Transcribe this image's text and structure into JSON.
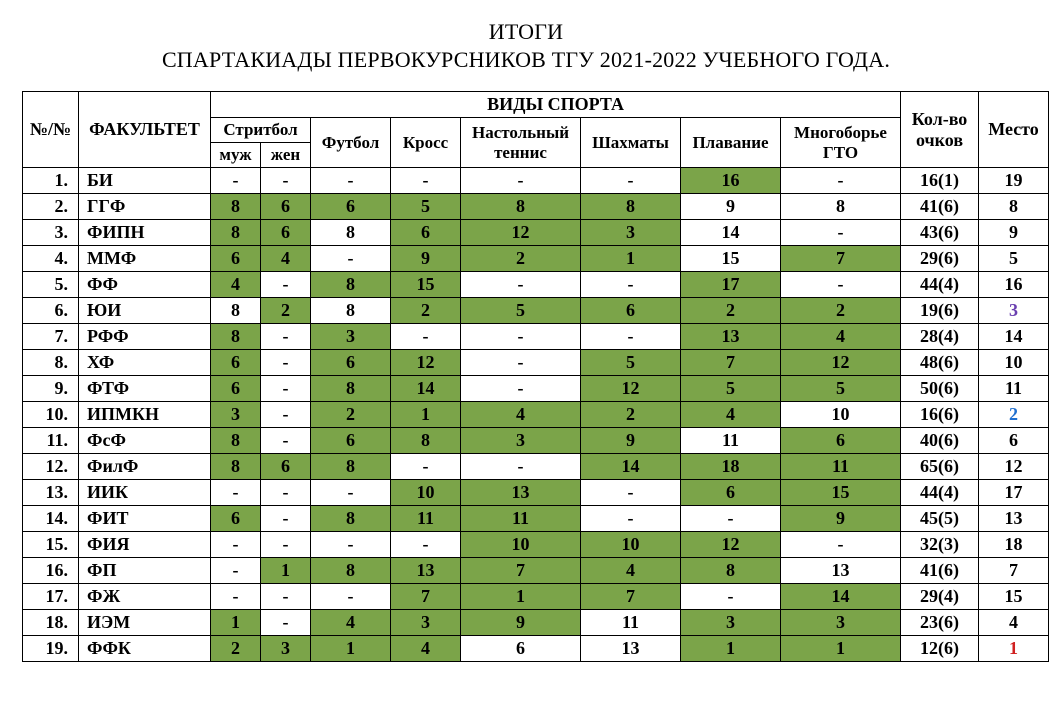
{
  "title_lines": [
    "ИТОГИ",
    "СПАРТАКИАДЫ ПЕРВОКУРСНИКОВ ТГУ 2021-2022 УЧЕБНОГО ГОДА."
  ],
  "headers": {
    "number": "№/№",
    "faculty": "ФАКУЛЬТЕТ",
    "sports_group": "ВИДЫ СПОРТА",
    "points": "Кол-во очков",
    "place": "Место",
    "streetball": "Стритбол",
    "streetball_m": "муж",
    "streetball_f": "жен",
    "football": "Футбол",
    "cross": "Кросс",
    "tennis": "Настольный теннис",
    "chess": "Шахматы",
    "swim": "Плавание",
    "gto": "Многоборье ГТО"
  },
  "colors": {
    "highlight": "#7ba449",
    "background": "#ffffff",
    "border": "#000000",
    "text": "#000000",
    "place_special": {
      "1": "#d02020",
      "2": "#1f6fd0",
      "3": "#6a3fb0"
    }
  },
  "columns": [
    "streetball_m",
    "streetball_f",
    "football",
    "cross",
    "tennis",
    "chess",
    "swim",
    "gto"
  ],
  "rows": [
    {
      "n": "1.",
      "fac": "БИ",
      "vals": [
        "-",
        "-",
        "-",
        "-",
        "-",
        "-",
        "16",
        "-"
      ],
      "hl": [
        0,
        0,
        0,
        0,
        0,
        0,
        1,
        0
      ],
      "pts": "16(1)",
      "place": "19"
    },
    {
      "n": "2.",
      "fac": "ГГФ",
      "vals": [
        "8",
        "6",
        "6",
        "5",
        "8",
        "8",
        "9",
        "8"
      ],
      "hl": [
        1,
        1,
        1,
        1,
        1,
        1,
        0,
        0
      ],
      "pts": "41(6)",
      "place": "8"
    },
    {
      "n": "3.",
      "fac": "ФИПН",
      "vals": [
        "8",
        "6",
        "8",
        "6",
        "12",
        "3",
        "14",
        "-"
      ],
      "hl": [
        1,
        1,
        0,
        1,
        1,
        1,
        0,
        0
      ],
      "pts": "43(6)",
      "place": "9"
    },
    {
      "n": "4.",
      "fac": "ММФ",
      "vals": [
        "6",
        "4",
        "-",
        "9",
        "2",
        "1",
        "15",
        "7"
      ],
      "hl": [
        1,
        1,
        0,
        1,
        1,
        1,
        0,
        1
      ],
      "pts": "29(6)",
      "place": "5"
    },
    {
      "n": "5.",
      "fac": "ФФ",
      "vals": [
        "4",
        "-",
        "8",
        "15",
        "-",
        "-",
        "17",
        "-"
      ],
      "hl": [
        1,
        0,
        1,
        1,
        0,
        0,
        1,
        0
      ],
      "pts": "44(4)",
      "place": "16"
    },
    {
      "n": "6.",
      "fac": "ЮИ",
      "vals": [
        "8",
        "2",
        "8",
        "2",
        "5",
        "6",
        "2",
        "2"
      ],
      "hl": [
        0,
        1,
        0,
        1,
        1,
        1,
        1,
        1
      ],
      "pts": "19(6)",
      "place": "3",
      "place_color": "#6a3fb0"
    },
    {
      "n": "7.",
      "fac": "РФФ",
      "vals": [
        "8",
        "-",
        "3",
        "-",
        "-",
        "-",
        "13",
        "4"
      ],
      "hl": [
        1,
        0,
        1,
        0,
        0,
        0,
        1,
        1
      ],
      "pts": "28(4)",
      "place": "14"
    },
    {
      "n": "8.",
      "fac": "ХФ",
      "vals": [
        "6",
        "-",
        "6",
        "12",
        "-",
        "5",
        "7",
        "12"
      ],
      "hl": [
        1,
        0,
        1,
        1,
        0,
        1,
        1,
        1
      ],
      "pts": "48(6)",
      "place": "10"
    },
    {
      "n": "9.",
      "fac": "ФТФ",
      "vals": [
        "6",
        "-",
        "8",
        "14",
        "-",
        "12",
        "5",
        "5"
      ],
      "hl": [
        1,
        0,
        1,
        1,
        0,
        1,
        1,
        1
      ],
      "pts": "50(6)",
      "place": "11"
    },
    {
      "n": "10.",
      "fac": "ИПМКН",
      "vals": [
        "3",
        "-",
        "2",
        "1",
        "4",
        "2",
        "4",
        "10"
      ],
      "hl": [
        1,
        0,
        1,
        1,
        1,
        1,
        1,
        0
      ],
      "pts": "16(6)",
      "place": "2",
      "place_color": "#1f6fd0"
    },
    {
      "n": "11.",
      "fac": "ФсФ",
      "vals": [
        "8",
        "-",
        "6",
        "8",
        "3",
        "9",
        "11",
        "6"
      ],
      "hl": [
        1,
        0,
        1,
        1,
        1,
        1,
        0,
        1
      ],
      "pts": "40(6)",
      "place": "6"
    },
    {
      "n": "12.",
      "fac": "ФилФ",
      "vals": [
        "8",
        "6",
        "8",
        "-",
        "-",
        "14",
        "18",
        "11"
      ],
      "hl": [
        1,
        1,
        1,
        0,
        0,
        1,
        1,
        1
      ],
      "pts": "65(6)",
      "place": "12"
    },
    {
      "n": "13.",
      "fac": "ИИК",
      "vals": [
        "-",
        "-",
        "-",
        "10",
        "13",
        "-",
        "6",
        "15"
      ],
      "hl": [
        0,
        0,
        0,
        1,
        1,
        0,
        1,
        1
      ],
      "pts": "44(4)",
      "place": "17"
    },
    {
      "n": "14.",
      "fac": "ФИТ",
      "vals": [
        "6",
        "-",
        "8",
        "11",
        "11",
        "-",
        "-",
        "9"
      ],
      "hl": [
        1,
        0,
        1,
        1,
        1,
        0,
        0,
        1
      ],
      "pts": "45(5)",
      "place": "13"
    },
    {
      "n": "15.",
      "fac": "ФИЯ",
      "vals": [
        "-",
        "-",
        "-",
        "-",
        "10",
        "10",
        "12",
        "-"
      ],
      "hl": [
        0,
        0,
        0,
        0,
        1,
        1,
        1,
        0
      ],
      "pts": "32(3)",
      "place": "18"
    },
    {
      "n": "16.",
      "fac": "ФП",
      "vals": [
        "-",
        "1",
        "8",
        "13",
        "7",
        "4",
        "8",
        "13"
      ],
      "hl": [
        0,
        1,
        1,
        1,
        1,
        1,
        1,
        0
      ],
      "pts": "41(6)",
      "place": "7"
    },
    {
      "n": "17.",
      "fac": "ФЖ",
      "vals": [
        "-",
        "-",
        "-",
        "7",
        "1",
        "7",
        "-",
        "14"
      ],
      "hl": [
        0,
        0,
        0,
        1,
        1,
        1,
        0,
        1
      ],
      "pts": "29(4)",
      "place": "15"
    },
    {
      "n": "18.",
      "fac": "ИЭМ",
      "vals": [
        "1",
        "-",
        "4",
        "3",
        "9",
        "11",
        "3",
        "3"
      ],
      "hl": [
        1,
        0,
        1,
        1,
        1,
        0,
        1,
        1
      ],
      "pts": "23(6)",
      "place": "4"
    },
    {
      "n": "19.",
      "fac": "ФФК",
      "vals": [
        "2",
        "3",
        "1",
        "4",
        "6",
        "13",
        "1",
        "1"
      ],
      "hl": [
        1,
        1,
        1,
        1,
        0,
        0,
        1,
        1
      ],
      "pts": "12(6)",
      "place": "1",
      "place_color": "#d02020"
    }
  ]
}
